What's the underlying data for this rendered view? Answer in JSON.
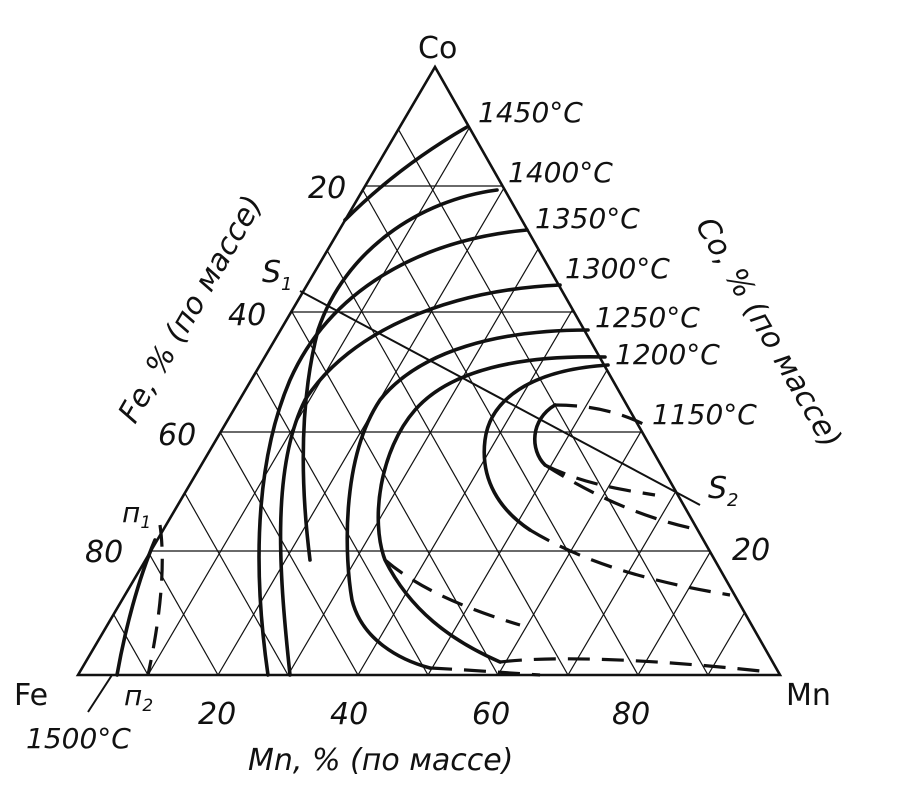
{
  "vertices": {
    "top": "Co",
    "left": "Fe",
    "right": "Mn"
  },
  "axes": {
    "left": "Fe, % (по массе)",
    "right": "Co, % (по массе)",
    "bottom": "Mn, % (по массе)"
  },
  "ticks": {
    "bottom": [
      "20",
      "40",
      "60",
      "80"
    ],
    "left": [
      "20",
      "40",
      "60",
      "80"
    ],
    "right": [
      "20"
    ]
  },
  "isotherms": [
    "1450°C",
    "1400°C",
    "1350°C",
    "1300°C",
    "1250°C",
    "1200°C",
    "1150°C"
  ],
  "bottom_temp": "1500°C",
  "points": {
    "s1": "S",
    "s1_sub": "1",
    "s2": "S",
    "s2_sub": "2",
    "n1": "п",
    "n1_sub": "1",
    "n2": "п",
    "n2_sub": "2"
  }
}
